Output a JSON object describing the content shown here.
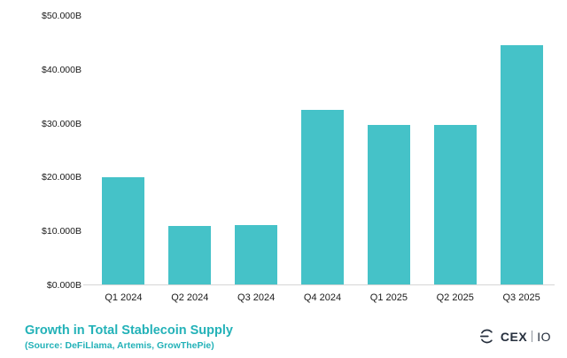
{
  "chart_data": {
    "type": "bar",
    "categories": [
      "Q1 2024",
      "Q2 2024",
      "Q3 2024",
      "Q4 2024",
      "Q1 2025",
      "Q2 2025",
      "Q3 2025"
    ],
    "values": [
      20.0,
      11.0,
      11.2,
      32.6,
      29.7,
      29.7,
      44.5
    ],
    "title": "Growth in Total Stablecoin Supply",
    "subtitle": "(Source: DeFiLlama, Artemis, GrowThePie)",
    "xlabel": "",
    "ylabel": "",
    "ylim": [
      0,
      50
    ],
    "yticks": [
      "$0.000B",
      "$10.000B",
      "$20.000B",
      "$30.000B",
      "$40.000B",
      "$50.000B"
    ],
    "bar_color": "#45c2c8",
    "grid": false,
    "legend": false
  },
  "branding": {
    "logo_main": "CEX",
    "logo_sub": "IO",
    "logo_color": "#262f3d"
  },
  "colors": {
    "accent_teal": "#23b2b8",
    "axis_line": "#d6d6d6",
    "tick_text": "#1a1a1a"
  }
}
